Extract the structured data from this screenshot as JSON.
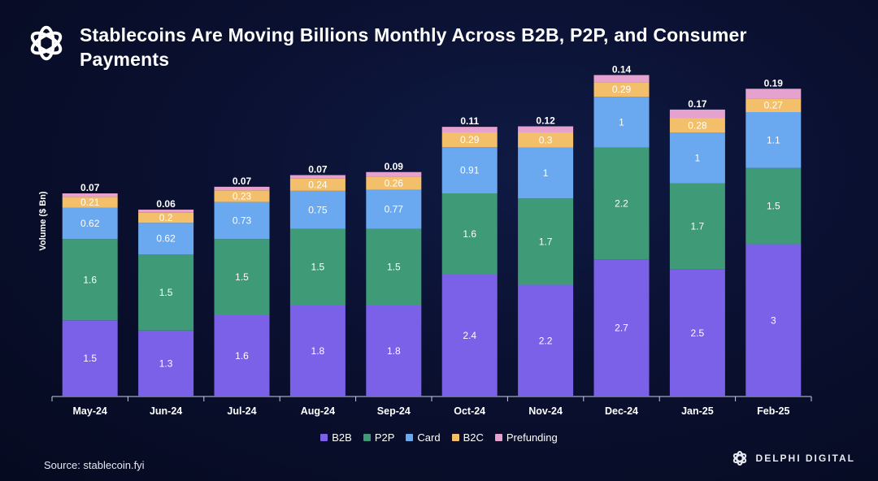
{
  "title": "Stablecoins Are Moving Billions Monthly Across B2B, P2P, and Consumer Payments",
  "source": "Source: stablecoin.fyi",
  "brand": "DELPHI DIGITAL",
  "colors": {
    "B2B": "#7b61e8",
    "P2P": "#3f9a78",
    "Card": "#6aa8f0",
    "B2C": "#f3bf6a",
    "Prefunding": "#e6a2cf"
  },
  "chart_data": {
    "type": "bar",
    "stacked": true,
    "title": "Stablecoins Are Moving Billions Monthly Across B2B, P2P, and Consumer Payments",
    "xlabel": "",
    "ylabel": "Volume ($ Bn)",
    "categories": [
      "May-24",
      "Jun-24",
      "Jul-24",
      "Aug-24",
      "Sep-24",
      "Oct-24",
      "Nov-24",
      "Dec-24",
      "Jan-25",
      "Feb-25"
    ],
    "series": [
      {
        "name": "B2B",
        "values": [
          1.5,
          1.3,
          1.6,
          1.8,
          1.8,
          2.4,
          2.2,
          2.7,
          2.5,
          3
        ]
      },
      {
        "name": "P2P",
        "values": [
          1.6,
          1.5,
          1.5,
          1.5,
          1.5,
          1.6,
          1.7,
          2.2,
          1.7,
          1.5
        ]
      },
      {
        "name": "Card",
        "values": [
          0.62,
          0.62,
          0.73,
          0.75,
          0.77,
          0.91,
          1,
          1,
          1,
          1.1
        ]
      },
      {
        "name": "B2C",
        "values": [
          0.21,
          0.2,
          0.23,
          0.24,
          0.26,
          0.29,
          0.3,
          0.29,
          0.28,
          0.27
        ]
      },
      {
        "name": "Prefunding",
        "values": [
          0.07,
          0.06,
          0.07,
          0.07,
          0.09,
          0.11,
          0.12,
          0.14,
          0.17,
          0.19
        ]
      }
    ],
    "value_labels": [
      [
        "1.5",
        "1.3",
        "1.6",
        "1.8",
        "1.8",
        "2.4",
        "2.2",
        "2.7",
        "2.5",
        "3"
      ],
      [
        "1.6",
        "1.5",
        "1.5",
        "1.5",
        "1.5",
        "1.6",
        "1.7",
        "2.2",
        "1.7",
        "1.5"
      ],
      [
        "0.62",
        "0.62",
        "0.73",
        "0.75",
        "0.77",
        "0.91",
        "1",
        "1",
        "1",
        "1.1"
      ],
      [
        "0.21",
        "0.2",
        "0.23",
        "0.24",
        "0.26",
        "0.29",
        "0.3",
        "0.29",
        "0.28",
        "0.27"
      ],
      [
        "0.07",
        "0.06",
        "0.07",
        "0.07",
        "0.09",
        "0.11",
        "0.12",
        "0.14",
        "0.17",
        "0.19"
      ]
    ],
    "legend": [
      "B2B",
      "P2P",
      "Card",
      "B2C",
      "Prefunding"
    ],
    "legend_position": "bottom-center",
    "grid": false
  }
}
